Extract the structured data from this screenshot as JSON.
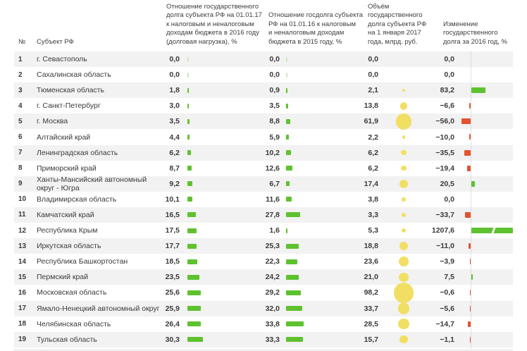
{
  "colors": {
    "positive_green": "#5ec22f",
    "zero_pale_green": "#cfeab9",
    "negative_red": "#e2532e",
    "bubble_yellow": "#f1df63",
    "stripe_gray": "#f2f2f2",
    "text": "#3a3a3a"
  },
  "headers": {
    "num": "№",
    "region": "Субъект РФ",
    "debt_load_2017": "Отношение государственного\nдолга субъекта РФ на 01.01.17\nк налоговым и неналоговым\nдоходам бюджета в 2016 году\n(долговая нагрузка), %",
    "debt_load_2016": "Отношение госдолга субъекта\nРФ на 01.01.16 к налоговым\nи неналоговым доходам\nбюджета в 2015 году, %",
    "debt_volume": "Объём\nгосударственного\nдолга субъекта РФ\nна 1 января 2017\nгода, млрд. руб.",
    "debt_change": "Изменение\nгосударственного\nдолга за 2016 год, %"
  },
  "chart_data": {
    "type": "table",
    "title": "Государственный долг субъектов РФ",
    "columns": [
      "№",
      "Субъект РФ",
      "Отношение государственного долга субъекта РФ на 01.01.17 к налоговым и неналоговым доходам бюджета в 2016 году (долговая нагрузка), %",
      "Отношение госдолга субъекта РФ на 01.01.16 к налоговым и неналоговым доходам бюджета в 2015 году, %",
      "Объём государственного долга субъекта РФ на 1 января 2017 года, млрд. руб.",
      "Изменение государственного долга за 2016 год, %"
    ],
    "rows": [
      {
        "num": "1",
        "region": "г. Севастополь",
        "load17": "0,0",
        "load17_v": 0.0,
        "load16": "0,0",
        "load16_v": 0.0,
        "vol": "0,0",
        "vol_v": 0.0,
        "chg": "0,0",
        "chg_v": 0.0
      },
      {
        "num": "2",
        "region": "Сахалинская область",
        "load17": "0,0",
        "load17_v": 0.0,
        "load16": "0,0",
        "load16_v": 0.0,
        "vol": "0,0",
        "vol_v": 0.0,
        "chg": "0,0",
        "chg_v": 0.0
      },
      {
        "num": "3",
        "region": "Тюменская область",
        "load17": "1,8",
        "load17_v": 1.8,
        "load16": "0,9",
        "load16_v": 0.9,
        "vol": "2,1",
        "vol_v": 2.1,
        "chg": "83,2",
        "chg_v": 83.2
      },
      {
        "num": "4",
        "region": "г. Санкт-Петербург",
        "load17": "3,0",
        "load17_v": 3.0,
        "load16": "3,5",
        "load16_v": 3.5,
        "vol": "13,8",
        "vol_v": 13.8,
        "chg": "−6,6",
        "chg_v": -6.6
      },
      {
        "num": "5",
        "region": "г. Москва",
        "load17": "3,5",
        "load17_v": 3.5,
        "load16": "8,8",
        "load16_v": 8.8,
        "vol": "61,9",
        "vol_v": 61.9,
        "chg": "−56,0",
        "chg_v": -56.0
      },
      {
        "num": "6",
        "region": "Алтайский край",
        "load17": "4,4",
        "load17_v": 4.4,
        "load16": "5,9",
        "load16_v": 5.9,
        "vol": "2,2",
        "vol_v": 2.2,
        "chg": "−10,0",
        "chg_v": -10.0
      },
      {
        "num": "7",
        "region": "Ленинградская область",
        "load17": "6,2",
        "load17_v": 6.2,
        "load16": "10,2",
        "load16_v": 10.2,
        "vol": "6,2",
        "vol_v": 6.2,
        "chg": "−35,5",
        "chg_v": -35.5
      },
      {
        "num": "8",
        "region": "Приморский край",
        "load17": "8,7",
        "load17_v": 8.7,
        "load16": "12,6",
        "load16_v": 12.6,
        "vol": "6,2",
        "vol_v": 6.2,
        "chg": "−19,4",
        "chg_v": -19.4
      },
      {
        "num": "9",
        "region": "Ханты-Мансийский автономный округ - Югра",
        "load17": "9,2",
        "load17_v": 9.2,
        "load16": "6,7",
        "load16_v": 6.7,
        "vol": "17,4",
        "vol_v": 17.4,
        "chg": "20,5",
        "chg_v": 20.5
      },
      {
        "num": "10",
        "region": "Владимирская область",
        "load17": "10,1",
        "load17_v": 10.1,
        "load16": "11,6",
        "load16_v": 11.6,
        "vol": "3,8",
        "vol_v": 3.8,
        "chg": "0,0",
        "chg_v": 0.0
      },
      {
        "num": "11",
        "region": "Камчатский край",
        "load17": "16,5",
        "load17_v": 16.5,
        "load16": "27,8",
        "load16_v": 27.8,
        "vol": "3,3",
        "vol_v": 3.3,
        "chg": "−33,7",
        "chg_v": -33.7
      },
      {
        "num": "12",
        "region": "Республика Крым",
        "load17": "17,5",
        "load17_v": 17.5,
        "load16": "1,6",
        "load16_v": 1.6,
        "vol": "5,3",
        "vol_v": 5.3,
        "chg": "1207,6",
        "chg_v": 1207.6
      },
      {
        "num": "13",
        "region": "Иркутская область",
        "load17": "17,7",
        "load17_v": 17.7,
        "load16": "25,3",
        "load16_v": 25.3,
        "vol": "18,8",
        "vol_v": 18.8,
        "chg": "−11,0",
        "chg_v": -11.0
      },
      {
        "num": "14",
        "region": "Республика Башкортостан",
        "load17": "18,5",
        "load17_v": 18.5,
        "load16": "22,3",
        "load16_v": 22.3,
        "vol": "23,6",
        "vol_v": 23.6,
        "chg": "−3,9",
        "chg_v": -3.9
      },
      {
        "num": "15",
        "region": "Пермский край",
        "load17": "23,5",
        "load17_v": 23.5,
        "load16": "24,2",
        "load16_v": 24.2,
        "vol": "21,0",
        "vol_v": 21.0,
        "chg": "7,5",
        "chg_v": 7.5
      },
      {
        "num": "16",
        "region": "Московская область",
        "load17": "25,6",
        "load17_v": 25.6,
        "load16": "29,2",
        "load16_v": 29.2,
        "vol": "98,2",
        "vol_v": 98.2,
        "chg": "−0,6",
        "chg_v": -0.6
      },
      {
        "num": "17",
        "region": "Ямало-Ненецкий автономный округ",
        "load17": "25,9",
        "load17_v": 25.9,
        "load16": "32,0",
        "load16_v": 32.0,
        "vol": "33,7",
        "vol_v": 33.7,
        "chg": "−5,6",
        "chg_v": -5.6
      },
      {
        "num": "18",
        "region": "Челябинская область",
        "load17": "26,4",
        "load17_v": 26.4,
        "load16": "33,8",
        "load16_v": 33.8,
        "vol": "28,5",
        "vol_v": 28.5,
        "chg": "−14,7",
        "chg_v": -14.7
      },
      {
        "num": "19",
        "region": "Тульская область",
        "load17": "30,3",
        "load17_v": 30.3,
        "load16": "33,3",
        "load16_v": 33.3,
        "vol": "15,7",
        "vol_v": 15.7,
        "chg": "−1,1",
        "chg_v": -1.1
      }
    ]
  }
}
